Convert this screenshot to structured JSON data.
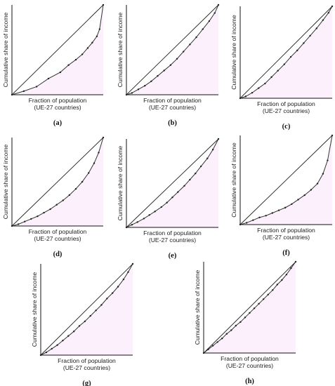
{
  "chart_data": [
    {
      "type": "line",
      "caption": "(a)",
      "xlabel": "Fraction of population",
      "xlabel_sub": "(UE-27 countries)",
      "ylabel": "Cumulative share of income",
      "xlim": [
        0,
        1
      ],
      "ylim": [
        0,
        1
      ],
      "series": [
        {
          "values": [
            [
              0,
              0
            ],
            [
              0.13,
              0.04
            ],
            [
              0.27,
              0.09
            ],
            [
              0.4,
              0.18
            ],
            [
              0.53,
              0.25
            ],
            [
              0.62,
              0.33
            ],
            [
              0.7,
              0.39
            ],
            [
              0.77,
              0.45
            ],
            [
              0.83,
              0.52
            ],
            [
              0.88,
              0.58
            ],
            [
              0.93,
              0.65
            ],
            [
              0.96,
              0.73
            ],
            [
              1,
              1
            ]
          ]
        },
        {
          "values": [
            [
              0,
              0
            ],
            [
              1,
              1
            ]
          ]
        }
      ]
    },
    {
      "type": "line",
      "caption": "(b)",
      "xlabel": "Fraction of population",
      "xlabel_sub": "(UE-27 countries)",
      "ylabel": "Cumulative share of income",
      "xlim": [
        0,
        1
      ],
      "ylim": [
        0,
        1
      ],
      "series": [
        {
          "values": [
            [
              0,
              0
            ],
            [
              0.06,
              0.02
            ],
            [
              0.13,
              0.06
            ],
            [
              0.2,
              0.1
            ],
            [
              0.27,
              0.15
            ],
            [
              0.34,
              0.21
            ],
            [
              0.41,
              0.27
            ],
            [
              0.48,
              0.33
            ],
            [
              0.55,
              0.4
            ],
            [
              0.62,
              0.48
            ],
            [
              0.69,
              0.56
            ],
            [
              0.76,
              0.64
            ],
            [
              0.83,
              0.73
            ],
            [
              0.9,
              0.82
            ],
            [
              0.96,
              0.91
            ],
            [
              1,
              1
            ]
          ]
        },
        {
          "values": [
            [
              0,
              0
            ],
            [
              1,
              1
            ]
          ]
        }
      ]
    },
    {
      "type": "line",
      "caption": "(c)",
      "xlabel": "Fraction of population",
      "xlabel_sub": "(UE-27 countries)",
      "ylabel": "Cumulative share of income",
      "xlim": [
        0,
        1
      ],
      "ylim": [
        0,
        1
      ],
      "series": [
        {
          "values": [
            [
              0,
              0
            ],
            [
              0.06,
              0.02
            ],
            [
              0.13,
              0.06
            ],
            [
              0.2,
              0.11
            ],
            [
              0.27,
              0.16
            ],
            [
              0.34,
              0.23
            ],
            [
              0.41,
              0.3
            ],
            [
              0.48,
              0.37
            ],
            [
              0.55,
              0.45
            ],
            [
              0.62,
              0.52
            ],
            [
              0.69,
              0.6
            ],
            [
              0.76,
              0.68
            ],
            [
              0.83,
              0.76
            ],
            [
              0.9,
              0.85
            ],
            [
              0.96,
              0.93
            ],
            [
              1,
              1
            ]
          ]
        },
        {
          "values": [
            [
              0,
              0
            ],
            [
              1,
              1
            ]
          ]
        }
      ]
    },
    {
      "type": "line",
      "caption": "(d)",
      "xlabel": "Fraction of population",
      "xlabel_sub": "(UE-27 countries)",
      "ylabel": "Cumulative share of income",
      "xlim": [
        0,
        1
      ],
      "ylim": [
        0,
        1
      ],
      "series": [
        {
          "values": [
            [
              0,
              0
            ],
            [
              0.07,
              0.02
            ],
            [
              0.14,
              0.05
            ],
            [
              0.21,
              0.08
            ],
            [
              0.28,
              0.11
            ],
            [
              0.35,
              0.15
            ],
            [
              0.42,
              0.19
            ],
            [
              0.49,
              0.24
            ],
            [
              0.56,
              0.29
            ],
            [
              0.63,
              0.35
            ],
            [
              0.7,
              0.42
            ],
            [
              0.77,
              0.5
            ],
            [
              0.84,
              0.6
            ],
            [
              0.9,
              0.71
            ],
            [
              0.95,
              0.83
            ],
            [
              1,
              1
            ]
          ]
        },
        {
          "values": [
            [
              0,
              0
            ],
            [
              1,
              1
            ]
          ]
        }
      ]
    },
    {
      "type": "line",
      "caption": "(e)",
      "xlabel": "Fraction of population",
      "xlabel_sub": "(UE-27 countries)",
      "ylabel": "Cumulative share of income",
      "xlim": [
        0,
        1
      ],
      "ylim": [
        0,
        1
      ],
      "series": [
        {
          "values": [
            [
              0,
              0
            ],
            [
              0.06,
              0.03
            ],
            [
              0.12,
              0.06
            ],
            [
              0.19,
              0.1
            ],
            [
              0.25,
              0.14
            ],
            [
              0.31,
              0.18
            ],
            [
              0.38,
              0.23
            ],
            [
              0.44,
              0.28
            ],
            [
              0.5,
              0.34
            ],
            [
              0.56,
              0.4
            ],
            [
              0.63,
              0.47
            ],
            [
              0.69,
              0.54
            ],
            [
              0.75,
              0.61
            ],
            [
              0.81,
              0.69
            ],
            [
              0.88,
              0.78
            ],
            [
              0.94,
              0.88
            ],
            [
              1,
              1
            ]
          ]
        },
        {
          "values": [
            [
              0,
              0
            ],
            [
              1,
              1
            ]
          ]
        }
      ]
    },
    {
      "type": "line",
      "caption": "(f)",
      "xlabel": "Fraction of population",
      "xlabel_sub": "(UE-27 countries)",
      "ylabel": "Cumulative share of income",
      "xlim": [
        0,
        1
      ],
      "ylim": [
        0,
        1
      ],
      "series": [
        {
          "values": [
            [
              0,
              0
            ],
            [
              0.07,
              0.02
            ],
            [
              0.14,
              0.05
            ],
            [
              0.21,
              0.08
            ],
            [
              0.28,
              0.1
            ],
            [
              0.35,
              0.13
            ],
            [
              0.42,
              0.16
            ],
            [
              0.49,
              0.19
            ],
            [
              0.56,
              0.23
            ],
            [
              0.63,
              0.28
            ],
            [
              0.7,
              0.33
            ],
            [
              0.77,
              0.39
            ],
            [
              0.84,
              0.46
            ],
            [
              0.9,
              0.57
            ],
            [
              0.95,
              0.72
            ],
            [
              1,
              1
            ]
          ]
        },
        {
          "values": [
            [
              0,
              0
            ],
            [
              1,
              1
            ]
          ]
        }
      ]
    },
    {
      "type": "line",
      "caption": "(g)",
      "xlabel": "Fraction of population",
      "xlabel_sub": "(UE-27 countries)",
      "ylabel": "Cumulative share of income",
      "xlim": [
        0,
        1
      ],
      "ylim": [
        0,
        1
      ],
      "series": [
        {
          "values": [
            [
              0,
              0
            ],
            [
              0.06,
              0.03
            ],
            [
              0.12,
              0.07
            ],
            [
              0.18,
              0.11
            ],
            [
              0.24,
              0.16
            ],
            [
              0.3,
              0.21
            ],
            [
              0.36,
              0.26
            ],
            [
              0.42,
              0.32
            ],
            [
              0.48,
              0.37
            ],
            [
              0.54,
              0.43
            ],
            [
              0.6,
              0.49
            ],
            [
              0.66,
              0.55
            ],
            [
              0.72,
              0.62
            ],
            [
              0.78,
              0.68
            ],
            [
              0.84,
              0.75
            ],
            [
              0.9,
              0.83
            ],
            [
              0.95,
              0.91
            ],
            [
              1,
              1
            ]
          ]
        },
        {
          "values": [
            [
              0,
              0
            ],
            [
              1,
              1
            ]
          ]
        }
      ]
    },
    {
      "type": "line",
      "caption": "(h)",
      "xlabel": "Fraction of population",
      "xlabel_sub": "(UE-27 countries)",
      "ylabel": "Cumulative share of income",
      "xlim": [
        0,
        1
      ],
      "ylim": [
        0,
        1
      ],
      "series": [
        {
          "values": [
            [
              0,
              0
            ],
            [
              0.05,
              0.04
            ],
            [
              0.1,
              0.08
            ],
            [
              0.15,
              0.12
            ],
            [
              0.2,
              0.16
            ],
            [
              0.25,
              0.21
            ],
            [
              0.3,
              0.25
            ],
            [
              0.35,
              0.3
            ],
            [
              0.4,
              0.34
            ],
            [
              0.45,
              0.39
            ],
            [
              0.5,
              0.44
            ],
            [
              0.55,
              0.49
            ],
            [
              0.6,
              0.54
            ],
            [
              0.65,
              0.59
            ],
            [
              0.7,
              0.64
            ],
            [
              0.75,
              0.69
            ],
            [
              0.8,
              0.75
            ],
            [
              0.85,
              0.8
            ],
            [
              0.9,
              0.86
            ],
            [
              0.95,
              0.93
            ],
            [
              1,
              1
            ]
          ]
        },
        {
          "values": [
            [
              0,
              0
            ],
            [
              1,
              1
            ]
          ]
        }
      ]
    }
  ],
  "style": {
    "fill_color": "#fbf0fb",
    "curve_color": "#333333",
    "equality_color": "#222222",
    "axis_color": "#111111"
  }
}
